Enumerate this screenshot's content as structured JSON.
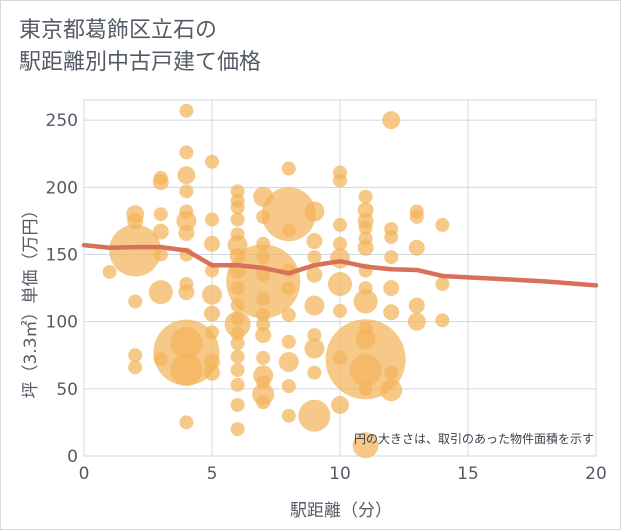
{
  "title_lines": [
    "東京都葛飾区立石の",
    "駅距離別中古戸建て価格"
  ],
  "chart_data": {
    "type": "scatter",
    "title": "東京都葛飾区立石の 駅距離別中古戸建て価格",
    "xlabel": "駅距離（分）",
    "ylabel": "坪（3.3㎡）単価（万円）",
    "xlim": [
      0,
      20
    ],
    "ylim": [
      0,
      265
    ],
    "xticks": [
      0,
      5,
      10,
      15,
      20
    ],
    "yticks": [
      0,
      50,
      100,
      150,
      200,
      250
    ],
    "grid": true,
    "annotation": "円の大きさは、取引のあった物件面積を示す",
    "colors": {
      "bubble": "#f2b45c",
      "trend": "#d9705a",
      "grid": "#cfd8e3"
    },
    "bubbles": [
      {
        "x": 4,
        "y": 257,
        "s": 7
      },
      {
        "x": 12,
        "y": 250,
        "s": 9
      },
      {
        "x": 4,
        "y": 226,
        "s": 7
      },
      {
        "x": 5,
        "y": 219,
        "s": 7
      },
      {
        "x": 8,
        "y": 214,
        "s": 7
      },
      {
        "x": 3,
        "y": 207,
        "s": 7
      },
      {
        "x": 3,
        "y": 204,
        "s": 8
      },
      {
        "x": 4,
        "y": 209,
        "s": 9
      },
      {
        "x": 10,
        "y": 211,
        "s": 7
      },
      {
        "x": 10,
        "y": 205,
        "s": 7
      },
      {
        "x": 4,
        "y": 197,
        "s": 7
      },
      {
        "x": 6,
        "y": 197,
        "s": 7
      },
      {
        "x": 6,
        "y": 190,
        "s": 7
      },
      {
        "x": 7,
        "y": 193,
        "s": 10
      },
      {
        "x": 11,
        "y": 193,
        "s": 7
      },
      {
        "x": 6,
        "y": 185,
        "s": 7
      },
      {
        "x": 8,
        "y": 180,
        "s": 27
      },
      {
        "x": 2,
        "y": 180,
        "s": 9
      },
      {
        "x": 3,
        "y": 180,
        "s": 7
      },
      {
        "x": 4,
        "y": 182,
        "s": 7
      },
      {
        "x": 9,
        "y": 182,
        "s": 10
      },
      {
        "x": 11,
        "y": 183,
        "s": 8
      },
      {
        "x": 13,
        "y": 182,
        "s": 7
      },
      {
        "x": 2,
        "y": 175,
        "s": 8
      },
      {
        "x": 4,
        "y": 175,
        "s": 10
      },
      {
        "x": 5,
        "y": 176,
        "s": 7
      },
      {
        "x": 6,
        "y": 176,
        "s": 7
      },
      {
        "x": 7,
        "y": 178,
        "s": 7
      },
      {
        "x": 10,
        "y": 172,
        "s": 7
      },
      {
        "x": 11,
        "y": 175,
        "s": 8
      },
      {
        "x": 13,
        "y": 178,
        "s": 7
      },
      {
        "x": 14,
        "y": 172,
        "s": 7
      },
      {
        "x": 2,
        "y": 153,
        "s": 26
      },
      {
        "x": 3,
        "y": 167,
        "s": 8
      },
      {
        "x": 4,
        "y": 166,
        "s": 8
      },
      {
        "x": 6,
        "y": 165,
        "s": 7
      },
      {
        "x": 8,
        "y": 168,
        "s": 7
      },
      {
        "x": 11,
        "y": 170,
        "s": 7
      },
      {
        "x": 12,
        "y": 169,
        "s": 7
      },
      {
        "x": 11,
        "y": 162,
        "s": 7
      },
      {
        "x": 12,
        "y": 163,
        "s": 7
      },
      {
        "x": 5,
        "y": 158,
        "s": 8
      },
      {
        "x": 6,
        "y": 157,
        "s": 10
      },
      {
        "x": 7,
        "y": 158,
        "s": 7
      },
      {
        "x": 9,
        "y": 160,
        "s": 8
      },
      {
        "x": 10,
        "y": 158,
        "s": 7
      },
      {
        "x": 11,
        "y": 155,
        "s": 8
      },
      {
        "x": 13,
        "y": 155,
        "s": 8
      },
      {
        "x": 3,
        "y": 150,
        "s": 7
      },
      {
        "x": 4,
        "y": 150,
        "s": 7
      },
      {
        "x": 6,
        "y": 149,
        "s": 8
      },
      {
        "x": 7,
        "y": 148,
        "s": 7
      },
      {
        "x": 9,
        "y": 148,
        "s": 7
      },
      {
        "x": 10,
        "y": 147,
        "s": 10
      },
      {
        "x": 12,
        "y": 148,
        "s": 7
      },
      {
        "x": 1,
        "y": 137,
        "s": 7
      },
      {
        "x": 5,
        "y": 138,
        "s": 7
      },
      {
        "x": 6,
        "y": 138,
        "s": 8
      },
      {
        "x": 7,
        "y": 135,
        "s": 7
      },
      {
        "x": 8,
        "y": 138,
        "s": 7
      },
      {
        "x": 9,
        "y": 135,
        "s": 8
      },
      {
        "x": 11,
        "y": 138,
        "s": 7
      },
      {
        "x": 7,
        "y": 130,
        "s": 37
      },
      {
        "x": 3,
        "y": 122,
        "s": 12
      },
      {
        "x": 4,
        "y": 128,
        "s": 7
      },
      {
        "x": 4,
        "y": 122,
        "s": 8
      },
      {
        "x": 6,
        "y": 125,
        "s": 7
      },
      {
        "x": 8,
        "y": 125,
        "s": 7
      },
      {
        "x": 10,
        "y": 128,
        "s": 12
      },
      {
        "x": 11,
        "y": 125,
        "s": 7
      },
      {
        "x": 12,
        "y": 125,
        "s": 8
      },
      {
        "x": 14,
        "y": 128,
        "s": 7
      },
      {
        "x": 2,
        "y": 115,
        "s": 7
      },
      {
        "x": 5,
        "y": 120,
        "s": 10
      },
      {
        "x": 6,
        "y": 112,
        "s": 7
      },
      {
        "x": 7,
        "y": 117,
        "s": 7
      },
      {
        "x": 9,
        "y": 112,
        "s": 10
      },
      {
        "x": 11,
        "y": 115,
        "s": 12
      },
      {
        "x": 13,
        "y": 112,
        "s": 8
      },
      {
        "x": 5,
        "y": 106,
        "s": 8
      },
      {
        "x": 6,
        "y": 102,
        "s": 7
      },
      {
        "x": 7,
        "y": 105,
        "s": 7
      },
      {
        "x": 8,
        "y": 105,
        "s": 7
      },
      {
        "x": 10,
        "y": 108,
        "s": 7
      },
      {
        "x": 12,
        "y": 107,
        "s": 8
      },
      {
        "x": 6,
        "y": 98,
        "s": 13
      },
      {
        "x": 7,
        "y": 98,
        "s": 7
      },
      {
        "x": 11,
        "y": 95,
        "s": 7
      },
      {
        "x": 13,
        "y": 100,
        "s": 9
      },
      {
        "x": 14,
        "y": 101,
        "s": 7
      },
      {
        "x": 5,
        "y": 92,
        "s": 7
      },
      {
        "x": 6,
        "y": 91,
        "s": 7
      },
      {
        "x": 7,
        "y": 90,
        "s": 8
      },
      {
        "x": 9,
        "y": 90,
        "s": 7
      },
      {
        "x": 11,
        "y": 87,
        "s": 10
      },
      {
        "x": 4,
        "y": 77,
        "s": 33
      },
      {
        "x": 4,
        "y": 84,
        "s": 16
      },
      {
        "x": 8,
        "y": 85,
        "s": 7
      },
      {
        "x": 6,
        "y": 84,
        "s": 7
      },
      {
        "x": 9,
        "y": 80,
        "s": 10
      },
      {
        "x": 11,
        "y": 72,
        "s": 40
      },
      {
        "x": 2,
        "y": 75,
        "s": 7
      },
      {
        "x": 3,
        "y": 72,
        "s": 7
      },
      {
        "x": 5,
        "y": 70,
        "s": 8
      },
      {
        "x": 6,
        "y": 74,
        "s": 7
      },
      {
        "x": 7,
        "y": 73,
        "s": 7
      },
      {
        "x": 8,
        "y": 70,
        "s": 10
      },
      {
        "x": 10,
        "y": 73,
        "s": 7
      },
      {
        "x": 2,
        "y": 66,
        "s": 7
      },
      {
        "x": 4,
        "y": 64,
        "s": 16
      },
      {
        "x": 5,
        "y": 62,
        "s": 8
      },
      {
        "x": 6,
        "y": 64,
        "s": 7
      },
      {
        "x": 7,
        "y": 60,
        "s": 10
      },
      {
        "x": 9,
        "y": 62,
        "s": 7
      },
      {
        "x": 11,
        "y": 64,
        "s": 16
      },
      {
        "x": 12,
        "y": 62,
        "s": 7
      },
      {
        "x": 6,
        "y": 53,
        "s": 7
      },
      {
        "x": 7,
        "y": 55,
        "s": 7
      },
      {
        "x": 8,
        "y": 52,
        "s": 7
      },
      {
        "x": 11,
        "y": 50,
        "s": 7
      },
      {
        "x": 12,
        "y": 49,
        "s": 11
      },
      {
        "x": 7,
        "y": 46,
        "s": 11
      },
      {
        "x": 6,
        "y": 38,
        "s": 7
      },
      {
        "x": 7,
        "y": 40,
        "s": 7
      },
      {
        "x": 10,
        "y": 38,
        "s": 9
      },
      {
        "x": 9,
        "y": 30,
        "s": 16
      },
      {
        "x": 8,
        "y": 30,
        "s": 7
      },
      {
        "x": 4,
        "y": 25,
        "s": 7
      },
      {
        "x": 6,
        "y": 20,
        "s": 7
      },
      {
        "x": 11,
        "y": 8,
        "s": 13
      }
    ],
    "trend": {
      "x": [
        0,
        1,
        2,
        3,
        4,
        5,
        6,
        7,
        8,
        9,
        10,
        11,
        12,
        13,
        14,
        15,
        16,
        17,
        18,
        19,
        20
      ],
      "y": [
        157,
        155,
        155.5,
        155.5,
        153,
        142,
        142,
        140,
        136,
        142,
        145,
        141,
        139,
        138.5,
        134,
        133,
        132,
        131,
        130,
        128.5,
        127
      ]
    }
  }
}
